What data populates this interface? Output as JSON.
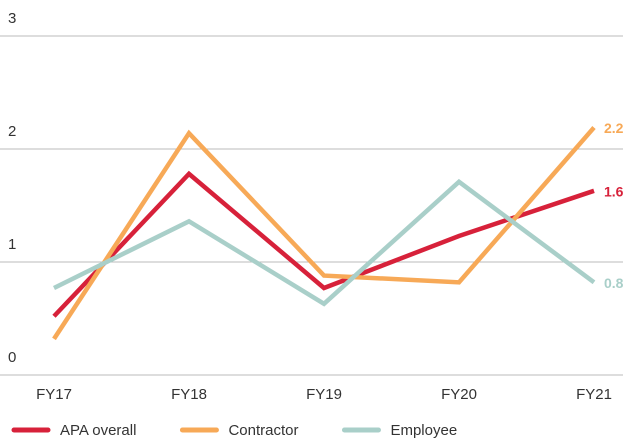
{
  "chart_data": {
    "type": "line",
    "categories": [
      "FY17",
      "FY18",
      "FY19",
      "FY20",
      "FY21"
    ],
    "series": [
      {
        "name": "APA overall",
        "color": "#d7213a",
        "values": [
          0.52,
          1.78,
          0.77,
          1.23,
          1.63
        ],
        "end_label": "1.6"
      },
      {
        "name": "Contractor",
        "color": "#f7a957",
        "values": [
          0.32,
          2.14,
          0.88,
          0.82,
          2.19
        ],
        "end_label": "2.2"
      },
      {
        "name": "Employee",
        "color": "#a9cfc9",
        "values": [
          0.77,
          1.36,
          0.63,
          1.71,
          0.82
        ],
        "end_label": "0.8"
      }
    ],
    "ylim": [
      0,
      3
    ],
    "yticks": [
      0,
      1,
      2,
      3
    ],
    "grid": true
  }
}
